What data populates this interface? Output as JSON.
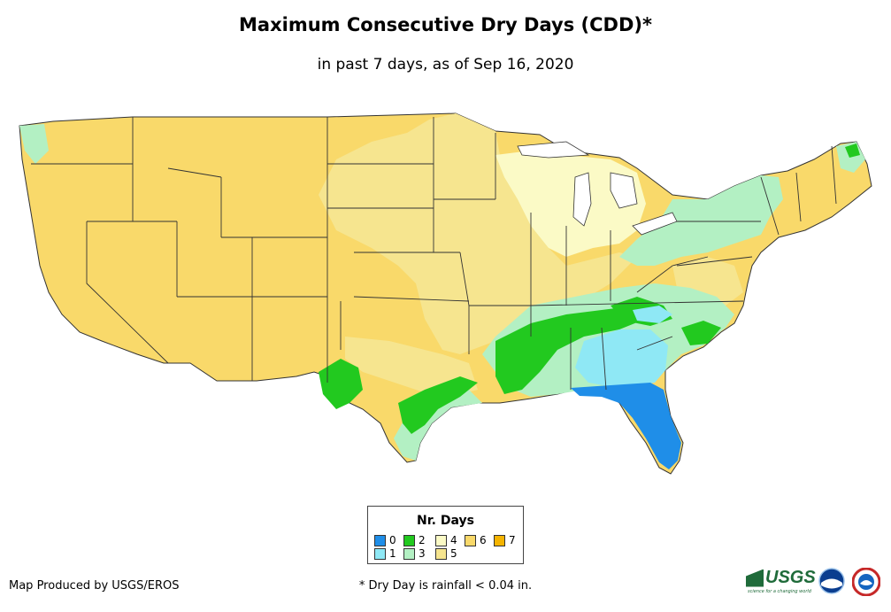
{
  "header": {
    "title": "Maximum Consecutive Dry Days (CDD)*",
    "subtitle": "in past 7 days, as of Sep 16, 2020"
  },
  "map": {
    "region": "Contiguous United States",
    "colors": {
      "0": "#1f8ee8",
      "1": "#8fe8f5",
      "2": "#22c91f",
      "3": "#b3f0c3",
      "4": "#fbfac6",
      "5": "#f6e58f",
      "6": "#f9d96a",
      "7": "#f5b400"
    }
  },
  "legend": {
    "title": "Nr. Days",
    "items": [
      {
        "label": "0",
        "color": "#1f8ee8"
      },
      {
        "label": "2",
        "color": "#22c91f"
      },
      {
        "label": "4",
        "color": "#fbfac6"
      },
      {
        "label": "6",
        "color": "#f9d96a"
      },
      {
        "label": "7",
        "color": "#f5b400"
      },
      {
        "label": "1",
        "color": "#8fe8f5"
      },
      {
        "label": "3",
        "color": "#b3f0c3"
      },
      {
        "label": "5",
        "color": "#f6e58f"
      }
    ]
  },
  "footer": {
    "credit": "Map Produced by USGS/EROS",
    "note": "* Dry Day is rainfall < 0.04 in."
  },
  "logos": {
    "usgs": "USGS",
    "usgs_tagline": "science for a changing world",
    "noaa_icon": "noaa-logo-icon",
    "nws_icon": "nws-logo-icon"
  }
}
